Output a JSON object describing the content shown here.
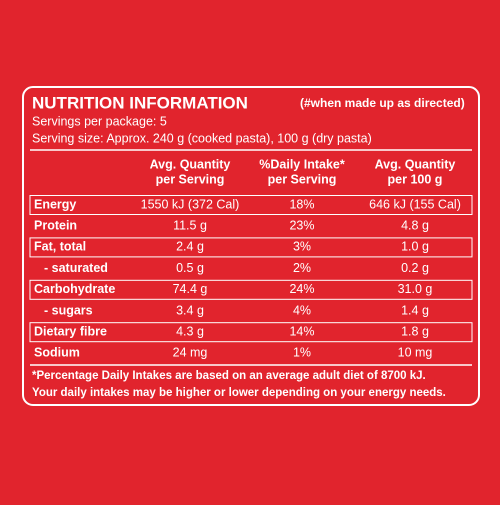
{
  "header": {
    "title": "NUTRITION INFORMATION",
    "subtitle": "(#when made up as directed)"
  },
  "servings": "Servings per package: 5",
  "serving_size": "Serving size: Approx. 240 g (cooked pasta), 100 g (dry pasta)",
  "table": {
    "headers": [
      [
        "Avg. Quantity",
        "per Serving"
      ],
      [
        "%Daily Intake*",
        "per Serving"
      ],
      [
        "Avg. Quantity",
        "per 100 g"
      ]
    ],
    "rows": [
      [
        "Energy",
        "1550 kJ (372 Cal)",
        "18%",
        "646 kJ (155 Cal)"
      ],
      [
        "Protein",
        "11.5 g",
        "23%",
        "4.8 g"
      ],
      [
        "Fat, total",
        "2.4 g",
        "3%",
        "1.0 g"
      ],
      [
        "- saturated",
        "0.5 g",
        "2%",
        "0.2 g"
      ],
      [
        "Carbohydrate",
        "74.4 g",
        "24%",
        "31.0 g"
      ],
      [
        "- sugars",
        "3.4 g",
        "4%",
        "1.4 g"
      ],
      [
        "Dietary fibre",
        "4.3 g",
        "14%",
        "1.8 g"
      ],
      [
        "Sodium",
        "24 mg",
        "1%",
        "10 mg"
      ]
    ]
  },
  "footnote": [
    "*Percentage Daily Intakes are based on an average adult diet of 8700 kJ.",
    "Your daily intakes may be higher or lower depending on your energy needs."
  ]
}
